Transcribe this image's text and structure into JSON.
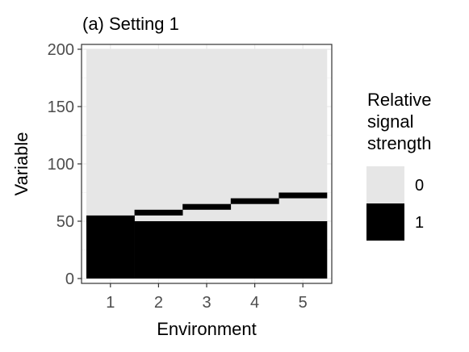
{
  "chart_data": {
    "type": "heatmap",
    "title": "(a) Setting 1",
    "xlabel": "Environment",
    "ylabel": "Variable",
    "x_categories": [
      1,
      2,
      3,
      4,
      5
    ],
    "y_ticks": [
      0,
      50,
      100,
      150,
      200
    ],
    "xlim": [
      0.5,
      5.5
    ],
    "ylim": [
      0,
      200
    ],
    "grid": true,
    "legend_position": "right",
    "legend": {
      "title": [
        "Relative",
        "signal",
        "strength"
      ],
      "entries": [
        {
          "label": "0",
          "color": "#e6e6e6"
        },
        {
          "label": "1",
          "color": "#000000"
        }
      ]
    },
    "signal_ranges": [
      {
        "environment": 1,
        "ranges": [
          [
            1,
            55
          ]
        ]
      },
      {
        "environment": 2,
        "ranges": [
          [
            1,
            50
          ],
          [
            56,
            60
          ]
        ]
      },
      {
        "environment": 3,
        "ranges": [
          [
            1,
            50
          ],
          [
            61,
            65
          ]
        ]
      },
      {
        "environment": 4,
        "ranges": [
          [
            1,
            50
          ],
          [
            66,
            70
          ]
        ]
      },
      {
        "environment": 5,
        "ranges": [
          [
            1,
            50
          ],
          [
            71,
            75
          ]
        ]
      }
    ],
    "n_variables": 200
  }
}
